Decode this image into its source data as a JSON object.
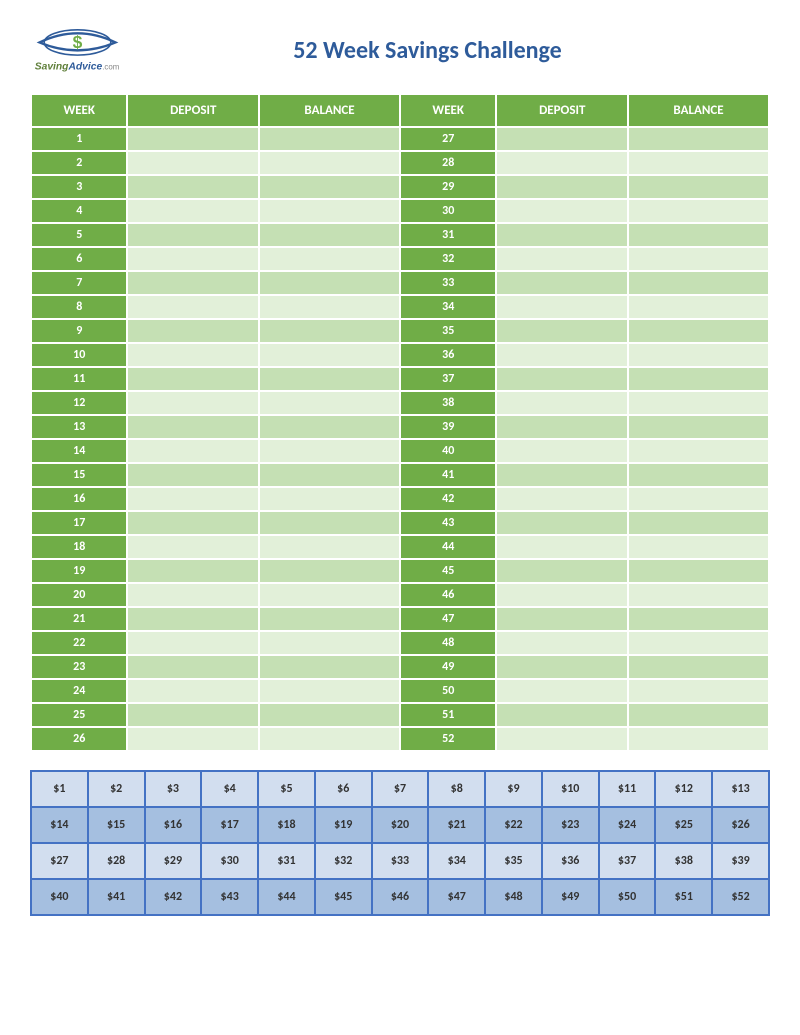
{
  "logo": {
    "text_saving": "Saving",
    "text_advice": "Advice",
    "text_com": ".com",
    "color_saving": "#5f7f3a",
    "color_advice": "#2e5b9a",
    "color_com": "#888888",
    "swoosh_color": "#2e5b9a",
    "dollar_color": "#70ad47"
  },
  "title": "52 Week Savings Challenge",
  "title_color": "#2e5b9a",
  "title_fontsize": 24,
  "tracker": {
    "columns": [
      "WEEK",
      "DEPOSIT",
      "BALANCE",
      "WEEK",
      "DEPOSIT",
      "BALANCE"
    ],
    "header_bg": "#70ad47",
    "header_fg": "#ffffff",
    "week_bg": "#70ad47",
    "week_fg": "#ffffff",
    "row_odd_bg": "#c5e0b4",
    "row_even_bg": "#e2f0d9",
    "rows": [
      {
        "left": {
          "week": "1",
          "deposit": "",
          "balance": ""
        },
        "right": {
          "week": "27",
          "deposit": "",
          "balance": ""
        }
      },
      {
        "left": {
          "week": "2",
          "deposit": "",
          "balance": ""
        },
        "right": {
          "week": "28",
          "deposit": "",
          "balance": ""
        }
      },
      {
        "left": {
          "week": "3",
          "deposit": "",
          "balance": ""
        },
        "right": {
          "week": "29",
          "deposit": "",
          "balance": ""
        }
      },
      {
        "left": {
          "week": "4",
          "deposit": "",
          "balance": ""
        },
        "right": {
          "week": "30",
          "deposit": "",
          "balance": ""
        }
      },
      {
        "left": {
          "week": "5",
          "deposit": "",
          "balance": ""
        },
        "right": {
          "week": "31",
          "deposit": "",
          "balance": ""
        }
      },
      {
        "left": {
          "week": "6",
          "deposit": "",
          "balance": ""
        },
        "right": {
          "week": "32",
          "deposit": "",
          "balance": ""
        }
      },
      {
        "left": {
          "week": "7",
          "deposit": "",
          "balance": ""
        },
        "right": {
          "week": "33",
          "deposit": "",
          "balance": ""
        }
      },
      {
        "left": {
          "week": "8",
          "deposit": "",
          "balance": ""
        },
        "right": {
          "week": "34",
          "deposit": "",
          "balance": ""
        }
      },
      {
        "left": {
          "week": "9",
          "deposit": "",
          "balance": ""
        },
        "right": {
          "week": "35",
          "deposit": "",
          "balance": ""
        }
      },
      {
        "left": {
          "week": "10",
          "deposit": "",
          "balance": ""
        },
        "right": {
          "week": "36",
          "deposit": "",
          "balance": ""
        }
      },
      {
        "left": {
          "week": "11",
          "deposit": "",
          "balance": ""
        },
        "right": {
          "week": "37",
          "deposit": "",
          "balance": ""
        }
      },
      {
        "left": {
          "week": "12",
          "deposit": "",
          "balance": ""
        },
        "right": {
          "week": "38",
          "deposit": "",
          "balance": ""
        }
      },
      {
        "left": {
          "week": "13",
          "deposit": "",
          "balance": ""
        },
        "right": {
          "week": "39",
          "deposit": "",
          "balance": ""
        }
      },
      {
        "left": {
          "week": "14",
          "deposit": "",
          "balance": ""
        },
        "right": {
          "week": "40",
          "deposit": "",
          "balance": ""
        }
      },
      {
        "left": {
          "week": "15",
          "deposit": "",
          "balance": ""
        },
        "right": {
          "week": "41",
          "deposit": "",
          "balance": ""
        }
      },
      {
        "left": {
          "week": "16",
          "deposit": "",
          "balance": ""
        },
        "right": {
          "week": "42",
          "deposit": "",
          "balance": ""
        }
      },
      {
        "left": {
          "week": "17",
          "deposit": "",
          "balance": ""
        },
        "right": {
          "week": "43",
          "deposit": "",
          "balance": ""
        }
      },
      {
        "left": {
          "week": "18",
          "deposit": "",
          "balance": ""
        },
        "right": {
          "week": "44",
          "deposit": "",
          "balance": ""
        }
      },
      {
        "left": {
          "week": "19",
          "deposit": "",
          "balance": ""
        },
        "right": {
          "week": "45",
          "deposit": "",
          "balance": ""
        }
      },
      {
        "left": {
          "week": "20",
          "deposit": "",
          "balance": ""
        },
        "right": {
          "week": "46",
          "deposit": "",
          "balance": ""
        }
      },
      {
        "left": {
          "week": "21",
          "deposit": "",
          "balance": ""
        },
        "right": {
          "week": "47",
          "deposit": "",
          "balance": ""
        }
      },
      {
        "left": {
          "week": "22",
          "deposit": "",
          "balance": ""
        },
        "right": {
          "week": "48",
          "deposit": "",
          "balance": ""
        }
      },
      {
        "left": {
          "week": "23",
          "deposit": "",
          "balance": ""
        },
        "right": {
          "week": "49",
          "deposit": "",
          "balance": ""
        }
      },
      {
        "left": {
          "week": "24",
          "deposit": "",
          "balance": ""
        },
        "right": {
          "week": "50",
          "deposit": "",
          "balance": ""
        }
      },
      {
        "left": {
          "week": "25",
          "deposit": "",
          "balance": ""
        },
        "right": {
          "week": "51",
          "deposit": "",
          "balance": ""
        }
      },
      {
        "left": {
          "week": "26",
          "deposit": "",
          "balance": ""
        },
        "right": {
          "week": "52",
          "deposit": "",
          "balance": ""
        }
      }
    ]
  },
  "amounts": {
    "border_color": "#4472c4",
    "row_light_bg": "#d2deef",
    "row_dark_bg": "#a5bfe0",
    "cols": 13,
    "rows": [
      [
        "$1",
        "$2",
        "$3",
        "$4",
        "$5",
        "$6",
        "$7",
        "$8",
        "$9",
        "$10",
        "$11",
        "$12",
        "$13"
      ],
      [
        "$14",
        "$15",
        "$16",
        "$17",
        "$18",
        "$19",
        "$20",
        "$21",
        "$22",
        "$23",
        "$24",
        "$25",
        "$26"
      ],
      [
        "$27",
        "$28",
        "$29",
        "$30",
        "$31",
        "$32",
        "$33",
        "$34",
        "$35",
        "$36",
        "$37",
        "$38",
        "$39"
      ],
      [
        "$40",
        "$41",
        "$42",
        "$43",
        "$44",
        "$45",
        "$46",
        "$47",
        "$48",
        "$49",
        "$50",
        "$51",
        "$52"
      ]
    ]
  }
}
